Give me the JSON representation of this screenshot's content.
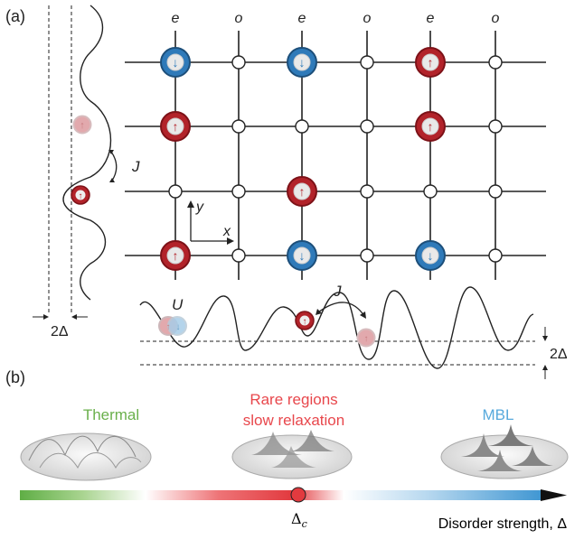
{
  "panel_a": {
    "label": "(a)",
    "column_labels": [
      "e",
      "o",
      "e",
      "o",
      "e",
      "o"
    ],
    "lattice_rows": [
      [
        "down",
        "empty",
        "down",
        "empty",
        "up",
        "empty"
      ],
      [
        "up",
        "empty",
        "empty",
        "empty",
        "up",
        "empty"
      ],
      [
        "empty",
        "empty",
        "up",
        "empty",
        "empty",
        "empty"
      ],
      [
        "up",
        "empty",
        "down",
        "empty",
        "down",
        "empty"
      ]
    ],
    "axis_x": "x",
    "axis_y": "y",
    "hopping_left": "J",
    "hopping_bottom": "J",
    "interaction": "U",
    "disorder_left": "2Δ",
    "disorder_right": "2Δ",
    "colors": {
      "up": "#b2232a",
      "down": "#2f7ab9",
      "ghost": "#e2a9ad"
    }
  },
  "panel_b": {
    "label": "(b)",
    "phase_thermal": "Thermal",
    "phase_rare_line1": "Rare regions",
    "phase_rare_line2": "slow relaxation",
    "phase_mbl": "MBL",
    "critical_label": "Δ",
    "critical_sub": "c",
    "axis_label": "Disorder strength, Δ",
    "colors": {
      "thermal": "#6ab04c",
      "rare": "#e8474c",
      "mbl": "#57a9dc"
    }
  }
}
